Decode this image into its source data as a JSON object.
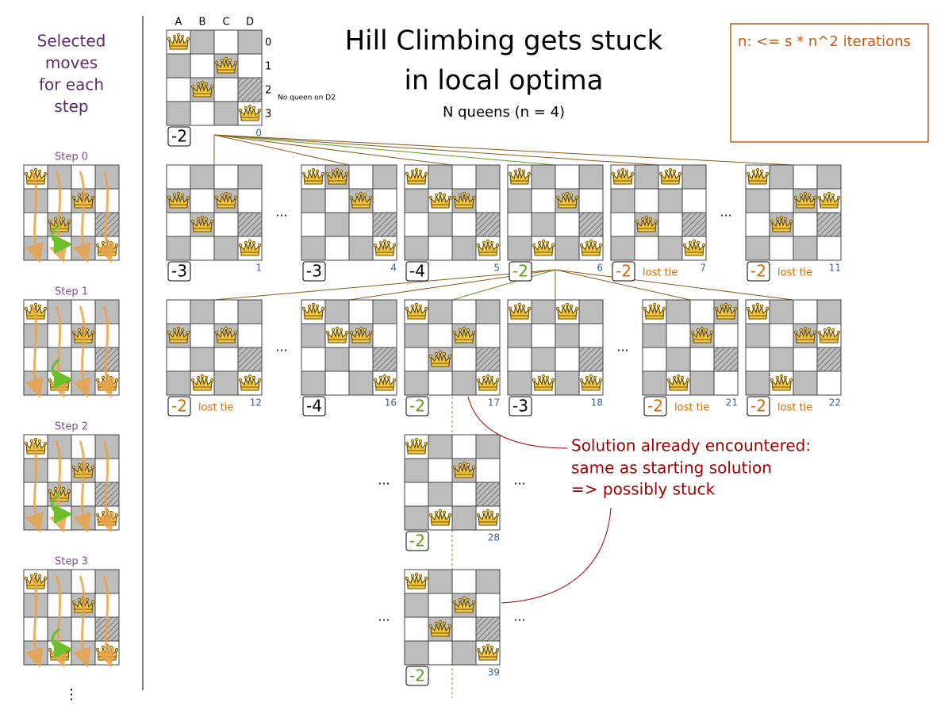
{
  "header": {
    "title_lines": [
      "Hill Climbing gets stuck",
      "in local optima"
    ],
    "subtitle": "N queens (n = 4)",
    "note": "n: <= s * n^2 iterations"
  },
  "sidebar": {
    "title_lines": [
      "Selected",
      "moves",
      "for each",
      "step"
    ],
    "steps": [
      {
        "label": "Step 0",
        "queens": [
          0,
          2,
          1,
          3
        ]
      },
      {
        "label": "Step 1",
        "queens": [
          0,
          3,
          1,
          3
        ]
      },
      {
        "label": "Step 2",
        "queens": [
          0,
          2,
          1,
          3
        ]
      },
      {
        "label": "Step 3",
        "queens": [
          0,
          3,
          1,
          3
        ]
      }
    ],
    "more": "⋮"
  },
  "board_labels": {
    "columns": [
      "A",
      "B",
      "C",
      "D"
    ],
    "rows": [
      "0",
      "1",
      "2",
      "3"
    ],
    "annotation": "No queen on D2"
  },
  "boards": [
    {
      "index": 0,
      "score": -2,
      "score_color": "#000000",
      "queens": [
        0,
        2,
        1,
        3
      ]
    },
    {
      "index": 1,
      "score": -3,
      "score_color": "#000000",
      "queens": [
        1,
        2,
        1,
        3
      ]
    },
    {
      "index": 4,
      "score": -3,
      "score_color": "#000000",
      "queens": [
        0,
        0,
        1,
        3
      ]
    },
    {
      "index": 5,
      "score": -4,
      "score_color": "#000000",
      "queens": [
        0,
        1,
        1,
        3
      ]
    },
    {
      "index": 6,
      "score": -2,
      "score_color": "#5a9e1a",
      "queens": [
        0,
        3,
        1,
        3
      ]
    },
    {
      "index": 7,
      "score": -2,
      "score_color": "#d46a00",
      "tag": "lost tie",
      "queens": [
        0,
        2,
        0,
        3
      ]
    },
    {
      "index": 11,
      "score": -2,
      "score_color": "#d46a00",
      "tag": "lost tie",
      "queens": [
        0,
        2,
        1,
        1
      ]
    },
    {
      "index": 12,
      "score": -2,
      "score_color": "#d46a00",
      "tag": "lost tie",
      "queens": [
        1,
        3,
        1,
        3
      ]
    },
    {
      "index": 16,
      "score": -4,
      "score_color": "#000000",
      "queens": [
        0,
        1,
        1,
        3
      ]
    },
    {
      "index": 17,
      "score": -2,
      "score_color": "#5a9e1a",
      "queens": [
        0,
        2,
        1,
        3
      ]
    },
    {
      "index": 18,
      "score": -3,
      "score_color": "#000000",
      "queens": [
        0,
        3,
        0,
        3
      ]
    },
    {
      "index": 21,
      "score": -2,
      "score_color": "#d46a00",
      "tag": "lost tie",
      "queens": [
        0,
        3,
        1,
        0
      ]
    },
    {
      "index": 22,
      "score": -2,
      "score_color": "#d46a00",
      "tag": "lost tie",
      "queens": [
        0,
        3,
        1,
        1
      ]
    },
    {
      "index": 28,
      "score": -2,
      "score_color": "#5a9e1a",
      "queens": [
        0,
        3,
        1,
        3
      ]
    },
    {
      "index": 39,
      "score": -2,
      "score_color": "#5a9e1a",
      "queens": [
        0,
        2,
        1,
        3
      ]
    }
  ],
  "ellipsis": "...",
  "callout": {
    "lines": [
      "Solution already encountered:",
      "same as starting solution",
      "=> possibly stuck"
    ]
  }
}
